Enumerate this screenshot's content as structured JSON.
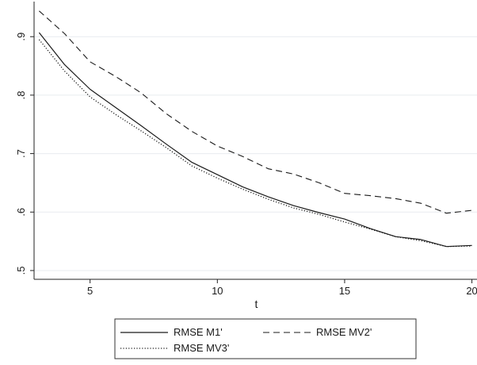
{
  "chart_data": {
    "type": "line",
    "xlabel": "t",
    "ylabel": "",
    "xlim": [
      2.8,
      20.2
    ],
    "ylim": [
      0.485,
      0.96
    ],
    "x_ticks": [
      5,
      10,
      15,
      20
    ],
    "y_ticks": [
      0.5,
      0.6,
      0.7,
      0.8,
      0.9
    ],
    "x_tick_labels": [
      "5",
      "10",
      "15",
      "20"
    ],
    "y_tick_labels": [
      ".5",
      ".6",
      ".7",
      ".8",
      ".9"
    ],
    "grid": "horizontal",
    "legend_position": "bottom",
    "x": [
      3,
      4,
      5,
      6,
      7,
      8,
      9,
      10,
      11,
      12,
      13,
      14,
      15,
      16,
      17,
      18,
      19,
      20
    ],
    "series": [
      {
        "name": "RMSE M1'",
        "style": "solid",
        "values": [
          0.907,
          0.852,
          0.81,
          0.779,
          0.748,
          0.716,
          0.685,
          0.664,
          0.643,
          0.626,
          0.611,
          0.599,
          0.588,
          0.572,
          0.558,
          0.553,
          0.541,
          0.543
        ]
      },
      {
        "name": "RMSE MV2'",
        "style": "dashed",
        "values": [
          0.944,
          0.905,
          0.857,
          0.832,
          0.804,
          0.768,
          0.738,
          0.713,
          0.695,
          0.674,
          0.665,
          0.65,
          0.632,
          0.628,
          0.623,
          0.615,
          0.598,
          0.603
        ]
      },
      {
        "name": "RMSE MV3'",
        "style": "dotted",
        "values": [
          0.895,
          0.841,
          0.797,
          0.767,
          0.739,
          0.71,
          0.679,
          0.658,
          0.639,
          0.622,
          0.607,
          0.596,
          0.583,
          0.571,
          0.558,
          0.551,
          0.541,
          0.542
        ]
      }
    ]
  }
}
